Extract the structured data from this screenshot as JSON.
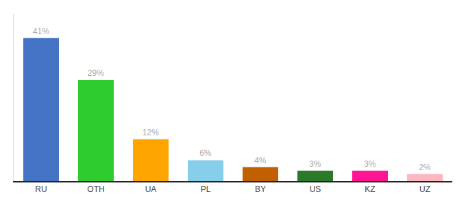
{
  "chart_data": {
    "type": "bar",
    "categories": [
      "RU",
      "OTH",
      "UA",
      "PL",
      "BY",
      "US",
      "KZ",
      "UZ"
    ],
    "values": [
      41,
      29,
      12,
      6,
      4,
      3,
      3,
      2
    ],
    "value_labels": [
      "41%",
      "29%",
      "12%",
      "6%",
      "4%",
      "3%",
      "3%",
      "2%"
    ],
    "colors": [
      "#4472c4",
      "#2ecc2e",
      "#ffa500",
      "#87ceeb",
      "#c06000",
      "#2a7a2a",
      "#ff1493",
      "#ffb6c1"
    ],
    "ylim": [
      0,
      48
    ],
    "data_labels": true,
    "tick_labels": "x",
    "grid": false
  }
}
